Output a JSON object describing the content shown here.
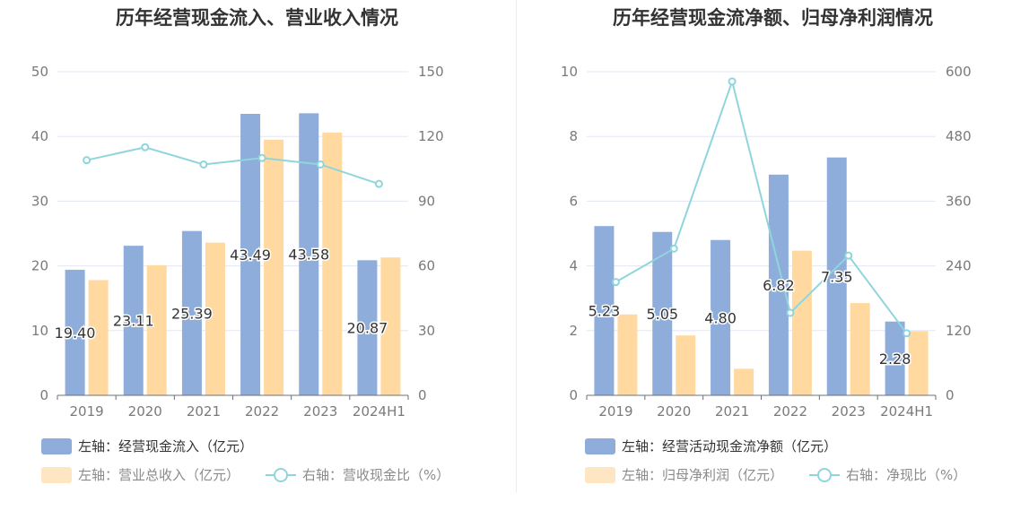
{
  "chart_data": [
    {
      "type": "bar",
      "title": "历年经营现金流入、营业收入情况",
      "categories": [
        "2019",
        "2020",
        "2021",
        "2022",
        "2023",
        "2024H1"
      ],
      "left_axis": {
        "ylim": [
          0,
          50
        ],
        "ticks": [
          "0",
          "10",
          "20",
          "30",
          "40",
          "50"
        ]
      },
      "right_axis": {
        "ylim": [
          0,
          150
        ],
        "ticks": [
          "0",
          "30",
          "60",
          "90",
          "120",
          "150"
        ]
      },
      "series": [
        {
          "name": "左轴：经营现金流入（亿元）",
          "type": "bar",
          "axis": "left",
          "color": "#8eaddb",
          "values": [
            19.4,
            23.11,
            25.39,
            43.49,
            43.58,
            20.87
          ],
          "labels": [
            "19.40",
            "23.11",
            "25.39",
            "43.49",
            "43.58",
            "20.87"
          ]
        },
        {
          "name": "左轴：营业总收入（亿元）",
          "type": "bar",
          "axis": "left",
          "color": "#ffd9a0",
          "values": [
            17.8,
            20.1,
            23.6,
            39.5,
            40.6,
            21.3
          ]
        },
        {
          "name": "右轴：营收现金比（%）",
          "type": "line",
          "axis": "right",
          "color": "#8fd5dc",
          "values": [
            109,
            115,
            107,
            110,
            107,
            98
          ]
        }
      ],
      "grid": true,
      "legend_position": "bottom-left"
    },
    {
      "type": "bar",
      "title": "历年经营现金流净额、归母净利润情况",
      "categories": [
        "2019",
        "2020",
        "2021",
        "2022",
        "2023",
        "2024H1"
      ],
      "left_axis": {
        "ylim": [
          0,
          10
        ],
        "ticks": [
          "0",
          "2",
          "4",
          "6",
          "8",
          "10"
        ]
      },
      "right_axis": {
        "ylim": [
          0,
          600
        ],
        "ticks": [
          "0",
          "120",
          "240",
          "360",
          "480",
          "600"
        ]
      },
      "series": [
        {
          "name": "左轴：经营活动现金流净额（亿元）",
          "type": "bar",
          "axis": "left",
          "color": "#8eaddb",
          "values": [
            5.23,
            5.05,
            4.8,
            6.82,
            7.35,
            2.28
          ],
          "labels": [
            "5.23",
            "5.05",
            "4.80",
            "6.82",
            "7.35",
            "2.28"
          ]
        },
        {
          "name": "左轴：归母净利润（亿元）",
          "type": "bar",
          "axis": "left",
          "color": "#ffd9a0",
          "values": [
            2.5,
            1.85,
            0.82,
            4.47,
            2.85,
            1.98
          ]
        },
        {
          "name": "右轴：净现比（%）",
          "type": "line",
          "axis": "right",
          "color": "#8fd5dc",
          "values": [
            210,
            272,
            582,
            153,
            259,
            115
          ]
        }
      ],
      "grid": true,
      "legend_position": "bottom-left"
    }
  ]
}
